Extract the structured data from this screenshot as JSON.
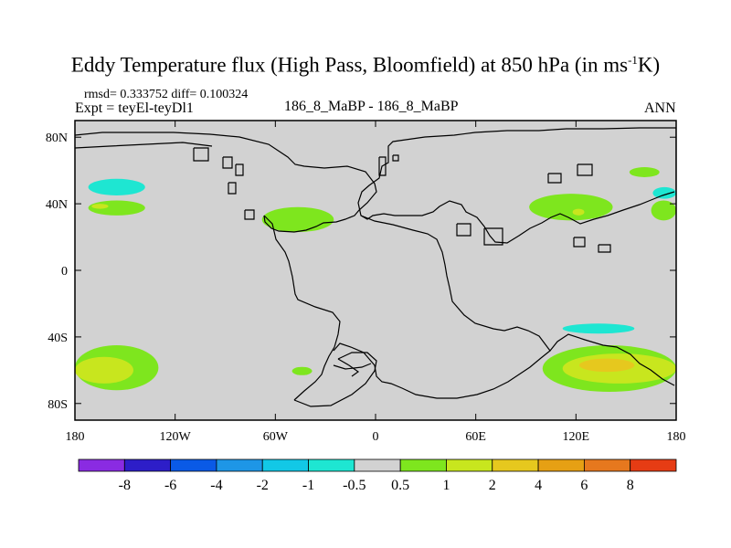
{
  "header": {
    "title_main": "Eddy Temperature flux (High Pass, Bloomfield) at 850 hPa (in ms",
    "title_sup": "-1",
    "title_end": "K)",
    "stats": "rmsd= 0.333752 diff= 0.100324",
    "experiment": "Expt = teyEl-teyDl1",
    "center_label": "186_8_MaBP - 186_8_MaBP",
    "season": "ANN"
  },
  "chart_data": {
    "type": "heatmap",
    "title": "Eddy Temperature flux (High Pass, Bloomfield) at 850 hPa (in ms-1K)",
    "projection": "cylindrical equidistant",
    "xlim": [
      -180,
      180
    ],
    "ylim": [
      -90,
      90
    ],
    "x_ticks": [
      {
        "value": -180,
        "label": "180"
      },
      {
        "value": -120,
        "label": "120W"
      },
      {
        "value": -60,
        "label": "60W"
      },
      {
        "value": 0,
        "label": "0"
      },
      {
        "value": 60,
        "label": "60E"
      },
      {
        "value": 120,
        "label": "120E"
      },
      {
        "value": 180,
        "label": "180"
      }
    ],
    "y_ticks": [
      {
        "value": 80,
        "label": "80N"
      },
      {
        "value": 40,
        "label": "40N"
      },
      {
        "value": 0,
        "label": "0"
      },
      {
        "value": -40,
        "label": "40S"
      },
      {
        "value": -80,
        "label": "80S"
      }
    ],
    "colorbar": {
      "colors": [
        "#8a2be2",
        "#2d1ec8",
        "#0a5ae6",
        "#1e96e6",
        "#12c8e6",
        "#1ee6d2",
        "#d2d2d2",
        "#7ee61e",
        "#c8e61e",
        "#e6c81e",
        "#e6a014",
        "#e6781e",
        "#e63c14"
      ],
      "labels": [
        "-8",
        "-6",
        "-4",
        "-2",
        "-1",
        "-0.5",
        "0.5",
        "1",
        "2",
        "4",
        "6",
        "8"
      ]
    },
    "background_color": "#d2d2d2",
    "regions": [
      {
        "name": "north-pacific-east-green",
        "color": "#7ee61e",
        "lon": [
          -172,
          -138
        ],
        "lat": [
          33,
          42
        ]
      },
      {
        "name": "north-pacific-east-yellow",
        "color": "#c8e61e",
        "lon": [
          -170,
          -160
        ],
        "lat": [
          37,
          40
        ]
      },
      {
        "name": "north-pacific-east-cyan",
        "color": "#1ee6d2",
        "lon": [
          -172,
          -138
        ],
        "lat": [
          45,
          55
        ]
      },
      {
        "name": "north-atlantic-green",
        "color": "#7ee61e",
        "lon": [
          -68,
          -25
        ],
        "lat": [
          23,
          38
        ]
      },
      {
        "name": "north-pacific-west-green",
        "color": "#7ee61e",
        "lon": [
          92,
          142
        ],
        "lat": [
          30,
          46
        ]
      },
      {
        "name": "north-pacific-west-yellow",
        "color": "#c8e61e",
        "lon": [
          118,
          125
        ],
        "lat": [
          33,
          37
        ]
      },
      {
        "name": "far-northeast-green",
        "color": "#7ee61e",
        "lon": [
          152,
          170
        ],
        "lat": [
          56,
          62
        ]
      },
      {
        "name": "far-east-cyan",
        "color": "#1ee6d2",
        "lon": [
          166,
          180
        ],
        "lat": [
          43,
          50
        ]
      },
      {
        "name": "far-east-green",
        "color": "#7ee61e",
        "lon": [
          165,
          180
        ],
        "lat": [
          30,
          42
        ]
      },
      {
        "name": "southern-ocean-west-green",
        "color": "#7ee61e",
        "lon": [
          -180,
          -130
        ],
        "lat": [
          -72,
          -45
        ]
      },
      {
        "name": "southern-ocean-west-yellow",
        "color": "#c8e61e",
        "lon": [
          -180,
          -145
        ],
        "lat": [
          -68,
          -52
        ]
      },
      {
        "name": "southern-ocean-east-green",
        "color": "#7ee61e",
        "lon": [
          100,
          180
        ],
        "lat": [
          -73,
          -45
        ]
      },
      {
        "name": "southern-ocean-east-yellow",
        "color": "#c8e61e",
        "lon": [
          112,
          180
        ],
        "lat": [
          -68,
          -50
        ]
      },
      {
        "name": "southern-ocean-east-gold",
        "color": "#e6c81e",
        "lon": [
          122,
          155
        ],
        "lat": [
          -61,
          -53
        ]
      },
      {
        "name": "southern-ocean-east-cyan",
        "color": "#1ee6d2",
        "lon": [
          112,
          155
        ],
        "lat": [
          -38,
          -32
        ]
      },
      {
        "name": "south-atlantic-green",
        "color": "#7ee61e",
        "lon": [
          -50,
          -38
        ],
        "lat": [
          -63,
          -58
        ]
      }
    ]
  }
}
